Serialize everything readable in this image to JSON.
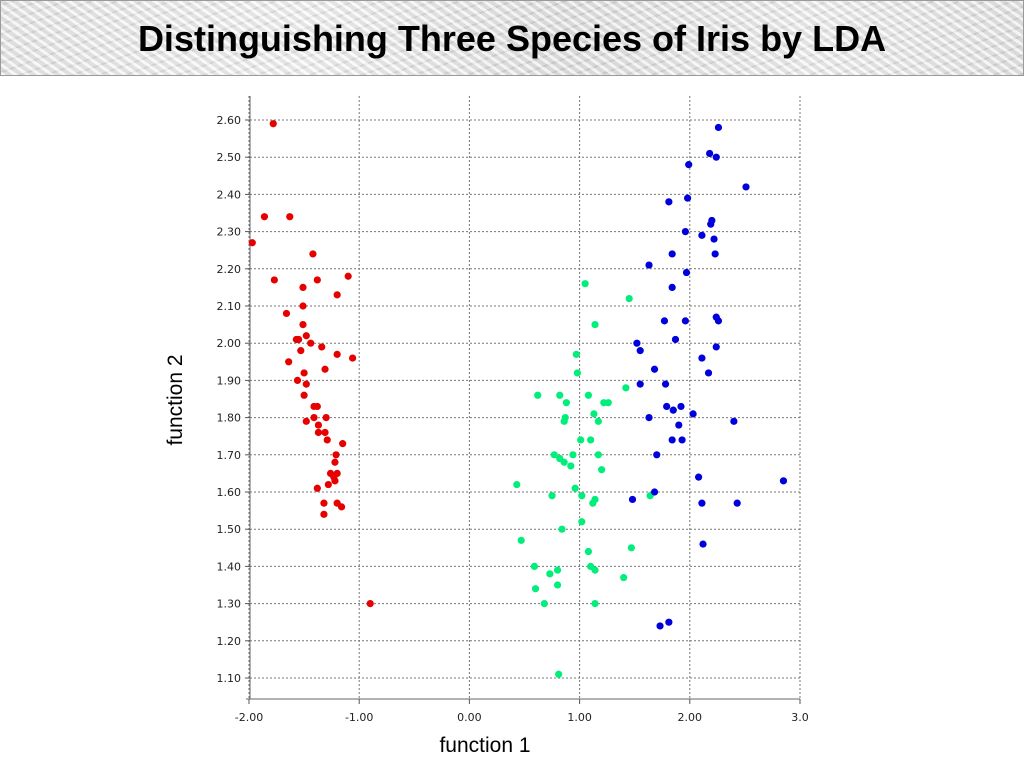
{
  "chart_data": {
    "type": "scatter",
    "title": "Distinguishing Three Species of Iris by LDA",
    "xlabel": "function 1",
    "ylabel": "function 2",
    "xlim": [
      -2.0,
      3.0
    ],
    "ylim": [
      1.1,
      2.6
    ],
    "x_ticks": [
      "-2.00",
      "-1.00",
      "0.00",
      "1.00",
      "2.00",
      "3.0"
    ],
    "y_ticks": [
      "1.10",
      "1.20",
      "1.30",
      "1.40",
      "1.50",
      "1.60",
      "1.70",
      "1.80",
      "1.90",
      "2.00",
      "2.10",
      "2.20",
      "2.30",
      "2.40",
      "2.50",
      "2.60"
    ],
    "grid": true,
    "series": [
      {
        "color": "#e60000",
        "points": [
          [
            -1.78,
            2.59
          ],
          [
            -1.86,
            2.34
          ],
          [
            -1.63,
            2.34
          ],
          [
            -1.97,
            2.27
          ],
          [
            -1.42,
            2.24
          ],
          [
            -1.77,
            2.17
          ],
          [
            -1.38,
            2.17
          ],
          [
            -1.1,
            2.18
          ],
          [
            -1.51,
            2.15
          ],
          [
            -1.2,
            2.13
          ],
          [
            -1.51,
            2.1
          ],
          [
            -1.66,
            2.08
          ],
          [
            -1.51,
            2.05
          ],
          [
            -1.57,
            2.01
          ],
          [
            -1.48,
            2.02
          ],
          [
            -1.55,
            2.01
          ],
          [
            -1.44,
            2.0
          ],
          [
            -1.34,
            1.99
          ],
          [
            -1.53,
            1.98
          ],
          [
            -1.2,
            1.97
          ],
          [
            -1.06,
            1.96
          ],
          [
            -1.64,
            1.95
          ],
          [
            -1.31,
            1.93
          ],
          [
            -1.5,
            1.92
          ],
          [
            -1.56,
            1.9
          ],
          [
            -1.48,
            1.89
          ],
          [
            -1.5,
            1.86
          ],
          [
            -1.38,
            1.83
          ],
          [
            -1.41,
            1.83
          ],
          [
            -1.3,
            1.8
          ],
          [
            -1.41,
            1.8
          ],
          [
            -1.48,
            1.79
          ],
          [
            -1.37,
            1.78
          ],
          [
            -1.37,
            1.76
          ],
          [
            -1.31,
            1.76
          ],
          [
            -1.29,
            1.74
          ],
          [
            -1.15,
            1.73
          ],
          [
            -1.21,
            1.7
          ],
          [
            -1.22,
            1.68
          ],
          [
            -1.26,
            1.65
          ],
          [
            -1.2,
            1.65
          ],
          [
            -1.23,
            1.64
          ],
          [
            -1.22,
            1.63
          ],
          [
            -1.28,
            1.62
          ],
          [
            -1.38,
            1.61
          ],
          [
            -1.32,
            1.57
          ],
          [
            -1.2,
            1.57
          ],
          [
            -1.16,
            1.56
          ],
          [
            -1.32,
            1.54
          ],
          [
            -0.9,
            1.3
          ]
        ]
      },
      {
        "color": "#00ee7a",
        "points": [
          [
            1.05,
            2.16
          ],
          [
            1.45,
            2.12
          ],
          [
            1.14,
            2.05
          ],
          [
            0.97,
            1.97
          ],
          [
            0.98,
            1.92
          ],
          [
            1.42,
            1.88
          ],
          [
            0.62,
            1.86
          ],
          [
            0.82,
            1.86
          ],
          [
            1.08,
            1.86
          ],
          [
            0.88,
            1.84
          ],
          [
            1.22,
            1.84
          ],
          [
            1.26,
            1.84
          ],
          [
            1.13,
            1.81
          ],
          [
            0.87,
            1.8
          ],
          [
            0.86,
            1.79
          ],
          [
            1.17,
            1.79
          ],
          [
            1.01,
            1.74
          ],
          [
            1.1,
            1.74
          ],
          [
            0.77,
            1.7
          ],
          [
            0.82,
            1.69
          ],
          [
            0.94,
            1.7
          ],
          [
            0.86,
            1.68
          ],
          [
            1.17,
            1.7
          ],
          [
            0.92,
            1.67
          ],
          [
            1.2,
            1.66
          ],
          [
            0.43,
            1.62
          ],
          [
            0.96,
            1.61
          ],
          [
            1.64,
            1.59
          ],
          [
            0.75,
            1.59
          ],
          [
            1.02,
            1.59
          ],
          [
            1.14,
            1.58
          ],
          [
            1.12,
            1.57
          ],
          [
            0.84,
            1.5
          ],
          [
            0.47,
            1.47
          ],
          [
            1.47,
            1.45
          ],
          [
            1.08,
            1.44
          ],
          [
            0.59,
            1.4
          ],
          [
            1.1,
            1.4
          ],
          [
            1.14,
            1.39
          ],
          [
            0.8,
            1.39
          ],
          [
            0.73,
            1.38
          ],
          [
            1.4,
            1.37
          ],
          [
            0.8,
            1.35
          ],
          [
            0.6,
            1.34
          ],
          [
            0.68,
            1.3
          ],
          [
            1.14,
            1.3
          ],
          [
            0.81,
            1.11
          ],
          [
            1.02,
            1.52
          ]
        ]
      },
      {
        "color": "#0000dd",
        "points": [
          [
            2.26,
            2.58
          ],
          [
            2.18,
            2.51
          ],
          [
            2.24,
            2.5
          ],
          [
            1.99,
            2.48
          ],
          [
            2.51,
            2.42
          ],
          [
            1.98,
            2.39
          ],
          [
            1.81,
            2.38
          ],
          [
            2.2,
            2.33
          ],
          [
            2.19,
            2.32
          ],
          [
            1.96,
            2.3
          ],
          [
            2.11,
            2.29
          ],
          [
            2.22,
            2.28
          ],
          [
            1.84,
            2.24
          ],
          [
            2.23,
            2.24
          ],
          [
            1.63,
            2.21
          ],
          [
            1.97,
            2.19
          ],
          [
            1.84,
            2.15
          ],
          [
            2.24,
            2.07
          ],
          [
            2.26,
            2.06
          ],
          [
            1.77,
            2.06
          ],
          [
            1.96,
            2.06
          ],
          [
            1.87,
            2.01
          ],
          [
            1.52,
            2.0
          ],
          [
            2.24,
            1.99
          ],
          [
            1.55,
            1.98
          ],
          [
            2.11,
            1.96
          ],
          [
            1.68,
            1.93
          ],
          [
            2.17,
            1.92
          ],
          [
            1.55,
            1.89
          ],
          [
            1.78,
            1.89
          ],
          [
            1.79,
            1.83
          ],
          [
            1.85,
            1.82
          ],
          [
            1.92,
            1.83
          ],
          [
            2.03,
            1.81
          ],
          [
            1.63,
            1.8
          ],
          [
            2.4,
            1.79
          ],
          [
            1.9,
            1.78
          ],
          [
            1.84,
            1.74
          ],
          [
            1.93,
            1.74
          ],
          [
            1.7,
            1.7
          ],
          [
            2.08,
            1.64
          ],
          [
            2.85,
            1.63
          ],
          [
            1.68,
            1.6
          ],
          [
            1.48,
            1.58
          ],
          [
            2.11,
            1.57
          ],
          [
            2.43,
            1.57
          ],
          [
            2.12,
            1.46
          ],
          [
            1.73,
            1.24
          ],
          [
            1.81,
            1.25
          ]
        ]
      }
    ]
  }
}
